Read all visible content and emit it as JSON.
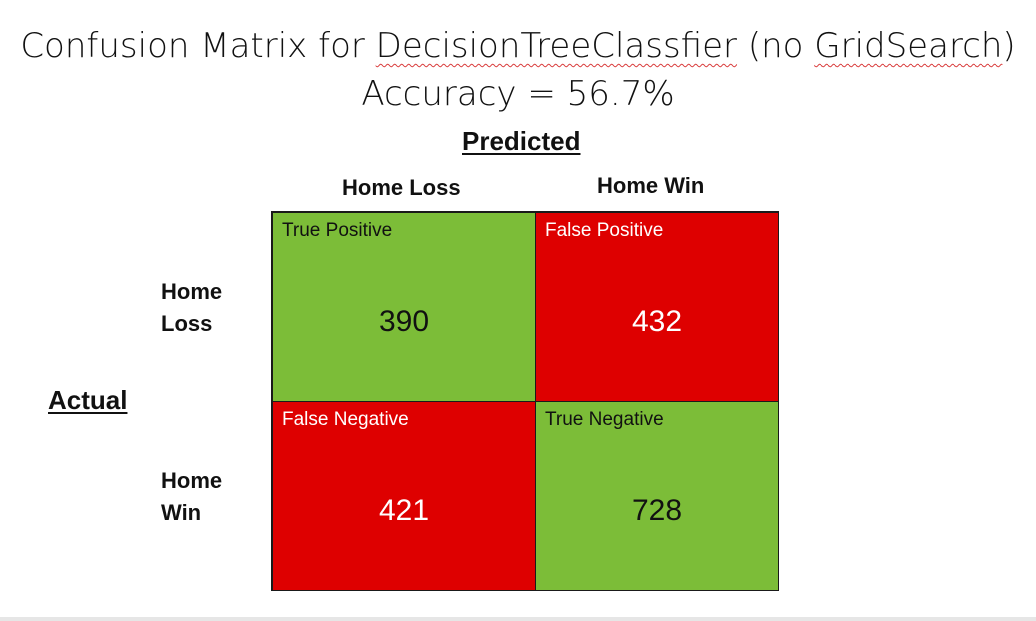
{
  "title": {
    "prefix": "Confusion Matrix for ",
    "model": "DecisionTreeClassfier",
    "middle": " (no ",
    "search": "GridSearch",
    "suffix": ")",
    "accuracy": "Accuracy = 56.7%"
  },
  "axes": {
    "predicted": "Predicted",
    "actual": "Actual"
  },
  "columns": {
    "home_loss": "Home Loss",
    "home_win": "Home Win"
  },
  "rows": {
    "home_loss": [
      "Home",
      "Loss"
    ],
    "home_win": [
      "Home",
      "Win"
    ]
  },
  "matrix": {
    "true_positive": {
      "label": "True Positive",
      "value": "390",
      "color": "#7cbd38"
    },
    "false_positive": {
      "label": "False Positive",
      "value": "432",
      "color": "#de0000"
    },
    "false_negative": {
      "label": "False Negative",
      "value": "421",
      "color": "#de0000"
    },
    "true_negative": {
      "label": "True Negative",
      "value": "728",
      "color": "#7cbd38"
    }
  }
}
